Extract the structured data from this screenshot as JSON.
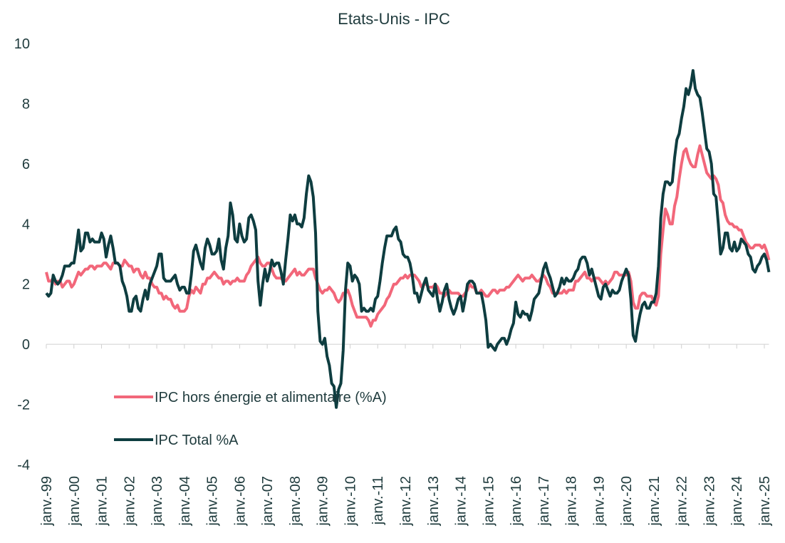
{
  "chart_data": {
    "type": "line",
    "title": "Etats-Unis - IPC",
    "categories": [
      "janv.-99",
      null,
      null,
      null,
      null,
      null,
      null,
      null,
      null,
      null,
      null,
      null,
      "janv.-00",
      null,
      null,
      null,
      null,
      null,
      null,
      null,
      null,
      null,
      null,
      null,
      "janv.-01",
      null,
      null,
      null,
      null,
      null,
      null,
      null,
      null,
      null,
      null,
      null,
      "janv.-02",
      null,
      null,
      null,
      null,
      null,
      null,
      null,
      null,
      null,
      null,
      null,
      "janv.-03",
      null,
      null,
      null,
      null,
      null,
      null,
      null,
      null,
      null,
      null,
      null,
      "janv.-04",
      null,
      null,
      null,
      null,
      null,
      null,
      null,
      null,
      null,
      null,
      null,
      "janv.-05",
      null,
      null,
      null,
      null,
      null,
      null,
      null,
      null,
      null,
      null,
      null,
      "janv.-06",
      null,
      null,
      null,
      null,
      null,
      null,
      null,
      null,
      null,
      null,
      null,
      "janv.-07",
      null,
      null,
      null,
      null,
      null,
      null,
      null,
      null,
      null,
      null,
      null,
      "janv.-08",
      null,
      null,
      null,
      null,
      null,
      null,
      null,
      null,
      null,
      null,
      null,
      "janv.-09",
      null,
      null,
      null,
      null,
      null,
      null,
      null,
      null,
      null,
      null,
      null,
      "janv.-10",
      null,
      null,
      null,
      null,
      null,
      null,
      null,
      null,
      null,
      null,
      null,
      "janv.-11",
      null,
      null,
      null,
      null,
      null,
      null,
      null,
      null,
      null,
      null,
      null,
      "janv.-12",
      null,
      null,
      null,
      null,
      null,
      null,
      null,
      null,
      null,
      null,
      null,
      "janv.-13",
      null,
      null,
      null,
      null,
      null,
      null,
      null,
      null,
      null,
      null,
      null,
      "janv.-14",
      null,
      null,
      null,
      null,
      null,
      null,
      null,
      null,
      null,
      null,
      null,
      "janv.-15",
      null,
      null,
      null,
      null,
      null,
      null,
      null,
      null,
      null,
      null,
      null,
      "janv.-16",
      null,
      null,
      null,
      null,
      null,
      null,
      null,
      null,
      null,
      null,
      null,
      "janv.-17",
      null,
      null,
      null,
      null,
      null,
      null,
      null,
      null,
      null,
      null,
      null,
      "janv.-18",
      null,
      null,
      null,
      null,
      null,
      null,
      null,
      null,
      null,
      null,
      null,
      "janv.-19",
      null,
      null,
      null,
      null,
      null,
      null,
      null,
      null,
      null,
      null,
      null,
      "janv.-20",
      null,
      null,
      null,
      null,
      null,
      null,
      null,
      null,
      null,
      null,
      null,
      "janv.-21",
      null,
      null,
      null,
      null,
      null,
      null,
      null,
      null,
      null,
      null,
      null,
      "janv.-22",
      null,
      null,
      null,
      null,
      null,
      null,
      null,
      null,
      null,
      null,
      null,
      "janv.-23",
      null,
      null,
      null,
      null,
      null,
      null,
      null,
      null,
      null,
      null,
      null,
      "janv.-24",
      null,
      null,
      null,
      null,
      null,
      null,
      null,
      null,
      null,
      null,
      null,
      "janv.-25",
      null,
      null
    ],
    "series": [
      {
        "name": "IPC hors énergie et alimentaire (%A)",
        "color": "#f2677a",
        "values": [
          2.4,
          2.1,
          2.1,
          2.2,
          2.0,
          2.1,
          2.1,
          1.9,
          2.0,
          2.1,
          2.1,
          1.9,
          2.0,
          2.2,
          2.4,
          2.3,
          2.4,
          2.5,
          2.5,
          2.6,
          2.6,
          2.5,
          2.6,
          2.6,
          2.6,
          2.7,
          2.7,
          2.6,
          2.5,
          2.7,
          2.7,
          2.7,
          2.6,
          2.6,
          2.8,
          2.7,
          2.6,
          2.6,
          2.4,
          2.5,
          2.5,
          2.3,
          2.2,
          2.4,
          2.2,
          2.2,
          2.0,
          1.9,
          1.9,
          1.7,
          1.7,
          1.5,
          1.6,
          1.5,
          1.5,
          1.3,
          1.2,
          1.3,
          1.1,
          1.1,
          1.1,
          1.2,
          1.6,
          1.8,
          1.7,
          1.9,
          1.8,
          1.7,
          2.0,
          2.0,
          2.2,
          2.2,
          2.3,
          2.4,
          2.3,
          2.2,
          2.2,
          2.0,
          2.1,
          2.1,
          2.0,
          2.1,
          2.1,
          2.2,
          2.1,
          2.1,
          2.1,
          2.3,
          2.4,
          2.6,
          2.7,
          2.8,
          2.9,
          2.7,
          2.6,
          2.6,
          2.7,
          2.7,
          2.5,
          2.3,
          2.2,
          2.2,
          2.2,
          2.1,
          2.1,
          2.2,
          2.3,
          2.4,
          2.5,
          2.3,
          2.4,
          2.3,
          2.3,
          2.4,
          2.5,
          2.5,
          2.5,
          2.2,
          2.0,
          1.8,
          1.7,
          1.8,
          1.8,
          1.9,
          1.8,
          1.7,
          1.5,
          1.4,
          1.5,
          1.7,
          1.7,
          1.8,
          1.6,
          1.3,
          1.1,
          0.9,
          0.9,
          0.9,
          0.9,
          0.9,
          0.8,
          0.6,
          0.8,
          0.8,
          1.0,
          1.1,
          1.2,
          1.3,
          1.5,
          1.6,
          1.8,
          2.0,
          2.0,
          2.1,
          2.2,
          2.2,
          2.3,
          2.2,
          2.3,
          2.3,
          2.3,
          2.2,
          2.1,
          1.9,
          2.0,
          2.0,
          1.9,
          1.9,
          1.9,
          2.0,
          1.9,
          1.7,
          1.7,
          1.6,
          1.7,
          1.8,
          1.7,
          1.7,
          1.7,
          1.7,
          1.6,
          1.6,
          1.7,
          1.8,
          2.0,
          1.9,
          1.9,
          1.7,
          1.7,
          1.8,
          1.7,
          1.6,
          1.6,
          1.7,
          1.8,
          1.8,
          1.7,
          1.8,
          1.8,
          1.8,
          1.9,
          1.9,
          2.0,
          2.1,
          2.2,
          2.3,
          2.2,
          2.1,
          2.2,
          2.2,
          2.2,
          2.3,
          2.2,
          2.1,
          2.1,
          2.2,
          2.3,
          2.2,
          2.0,
          1.9,
          1.7,
          1.7,
          1.7,
          1.7,
          1.7,
          1.8,
          1.7,
          1.8,
          1.8,
          1.8,
          2.1,
          2.1,
          2.2,
          2.3,
          2.4,
          2.2,
          2.2,
          2.1,
          2.2,
          2.2,
          2.2,
          2.1,
          2.0,
          2.1,
          2.0,
          2.1,
          2.2,
          2.4,
          2.4,
          2.3,
          2.3,
          2.3,
          2.3,
          2.4,
          2.1,
          1.4,
          1.2,
          1.2,
          1.6,
          1.7,
          1.7,
          1.6,
          1.6,
          1.6,
          1.4,
          1.3,
          1.6,
          3.0,
          3.8,
          4.5,
          4.3,
          4.0,
          4.0,
          4.6,
          4.9,
          5.5,
          6.0,
          6.4,
          6.5,
          6.2,
          6.0,
          5.9,
          5.9,
          6.3,
          6.6,
          6.3,
          6.0,
          5.7,
          5.6,
          5.5,
          5.6,
          5.5,
          5.3,
          4.8,
          4.7,
          4.3,
          4.1,
          4.0,
          4.0,
          3.9,
          3.9,
          3.8,
          3.8,
          3.6,
          3.4,
          3.3,
          3.2,
          3.2,
          3.3,
          3.3,
          3.3,
          3.2,
          3.3,
          3.1,
          2.8
        ]
      },
      {
        "name": "IPC Total %A",
        "color": "#0e3d40",
        "values": [
          1.7,
          1.6,
          1.7,
          2.3,
          2.1,
          2.0,
          2.1,
          2.3,
          2.6,
          2.6,
          2.6,
          2.7,
          2.7,
          3.2,
          3.8,
          3.1,
          3.2,
          3.7,
          3.7,
          3.4,
          3.5,
          3.4,
          3.4,
          3.4,
          3.7,
          3.5,
          2.9,
          3.3,
          3.6,
          3.2,
          2.7,
          2.7,
          2.6,
          2.1,
          1.9,
          1.6,
          1.1,
          1.1,
          1.5,
          1.6,
          1.2,
          1.1,
          1.5,
          1.8,
          1.5,
          2.0,
          2.2,
          2.4,
          2.6,
          3.0,
          3.0,
          2.2,
          2.1,
          2.1,
          2.1,
          2.2,
          2.3,
          2.0,
          1.8,
          1.9,
          1.9,
          1.7,
          1.7,
          2.3,
          3.1,
          3.3,
          3.0,
          2.7,
          2.5,
          3.2,
          3.5,
          3.3,
          3.0,
          3.0,
          3.1,
          3.5,
          2.8,
          2.5,
          3.2,
          3.6,
          4.7,
          4.3,
          3.5,
          3.4,
          4.0,
          3.6,
          3.4,
          3.5,
          4.2,
          4.3,
          4.1,
          3.8,
          2.1,
          1.3,
          2.0,
          2.5,
          2.1,
          2.4,
          2.8,
          2.6,
          2.7,
          2.7,
          2.4,
          2.0,
          2.8,
          3.5,
          4.3,
          4.1,
          4.3,
          4.0,
          4.0,
          3.9,
          4.2,
          5.0,
          5.6,
          5.4,
          4.9,
          3.7,
          1.1,
          0.1,
          0.0,
          0.2,
          -0.4,
          -0.7,
          -1.3,
          -1.4,
          -2.1,
          -1.5,
          -1.3,
          -0.2,
          1.8,
          2.7,
          2.6,
          2.1,
          2.3,
          2.2,
          2.0,
          1.1,
          1.2,
          1.1,
          1.1,
          1.2,
          1.1,
          1.5,
          1.6,
          2.1,
          2.7,
          3.2,
          3.6,
          3.6,
          3.6,
          3.8,
          3.9,
          3.5,
          3.4,
          3.0,
          2.9,
          2.9,
          2.7,
          2.3,
          1.7,
          1.7,
          1.4,
          1.7,
          2.0,
          2.2,
          1.8,
          1.7,
          1.6,
          2.0,
          1.5,
          1.1,
          1.4,
          1.8,
          2.0,
          1.5,
          1.2,
          1.0,
          1.2,
          1.5,
          1.6,
          1.1,
          1.5,
          2.0,
          2.1,
          2.1,
          2.0,
          1.7,
          1.7,
          1.7,
          1.3,
          0.8,
          -0.1,
          0.0,
          -0.1,
          -0.2,
          0.0,
          0.1,
          0.2,
          0.2,
          0.0,
          0.2,
          0.5,
          0.7,
          1.4,
          1.0,
          0.9,
          1.1,
          1.0,
          1.0,
          0.8,
          1.1,
          1.5,
          1.6,
          1.7,
          2.1,
          2.5,
          2.7,
          2.4,
          2.2,
          1.9,
          1.6,
          1.7,
          1.9,
          2.2,
          2.0,
          2.2,
          2.1,
          2.1,
          2.2,
          2.4,
          2.5,
          2.8,
          2.9,
          2.9,
          2.7,
          2.3,
          2.5,
          2.2,
          1.9,
          1.6,
          1.5,
          1.9,
          2.0,
          1.8,
          1.6,
          1.8,
          1.7,
          1.7,
          1.8,
          2.1,
          2.3,
          2.5,
          2.3,
          1.5,
          0.3,
          0.1,
          0.6,
          1.0,
          1.3,
          1.4,
          1.2,
          1.2,
          1.4,
          1.4,
          1.7,
          2.6,
          4.2,
          5.0,
          5.4,
          5.4,
          5.3,
          5.4,
          6.2,
          6.8,
          7.0,
          7.5,
          7.9,
          8.5,
          8.3,
          8.6,
          9.1,
          8.5,
          8.3,
          8.2,
          7.7,
          7.1,
          6.5,
          6.4,
          6.0,
          5.0,
          4.9,
          4.0,
          3.0,
          3.2,
          3.7,
          3.7,
          3.2,
          3.1,
          3.4,
          3.1,
          3.2,
          3.5,
          3.4,
          3.3,
          3.0,
          2.9,
          2.5,
          2.4,
          2.6,
          2.7,
          2.9,
          3.0,
          2.8,
          2.4
        ]
      }
    ],
    "ylim": [
      -4,
      10
    ],
    "yticks": [
      -4,
      -2,
      0,
      2,
      4,
      6,
      8,
      10
    ],
    "grid": false,
    "legend": "lower left"
  }
}
